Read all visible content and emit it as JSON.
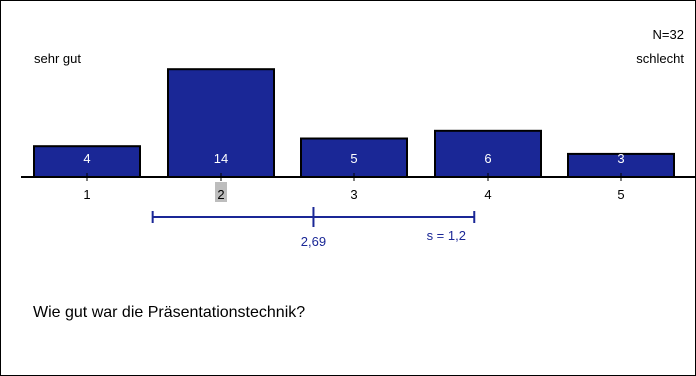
{
  "chart_data": {
    "type": "bar",
    "categories": [
      "1",
      "2",
      "3",
      "4",
      "5"
    ],
    "values": [
      4,
      14,
      5,
      6,
      3
    ],
    "n_label": "N=32",
    "left_anchor": "sehr gut",
    "right_anchor": "schlecht",
    "highlighted_category": "2",
    "mean": 2.69,
    "mean_label": "2,69",
    "sd_label": "s = 1,2",
    "interval": [
      1.49,
      3.89
    ],
    "question": "Wie gut war die Präsentationstechnik?"
  },
  "colors": {
    "bar_fill": "#1a2796",
    "bar_stroke": "#000000",
    "bar_label": "#ffffff",
    "mean_line": "#1a2796",
    "highlight": "#bdbdbd"
  }
}
